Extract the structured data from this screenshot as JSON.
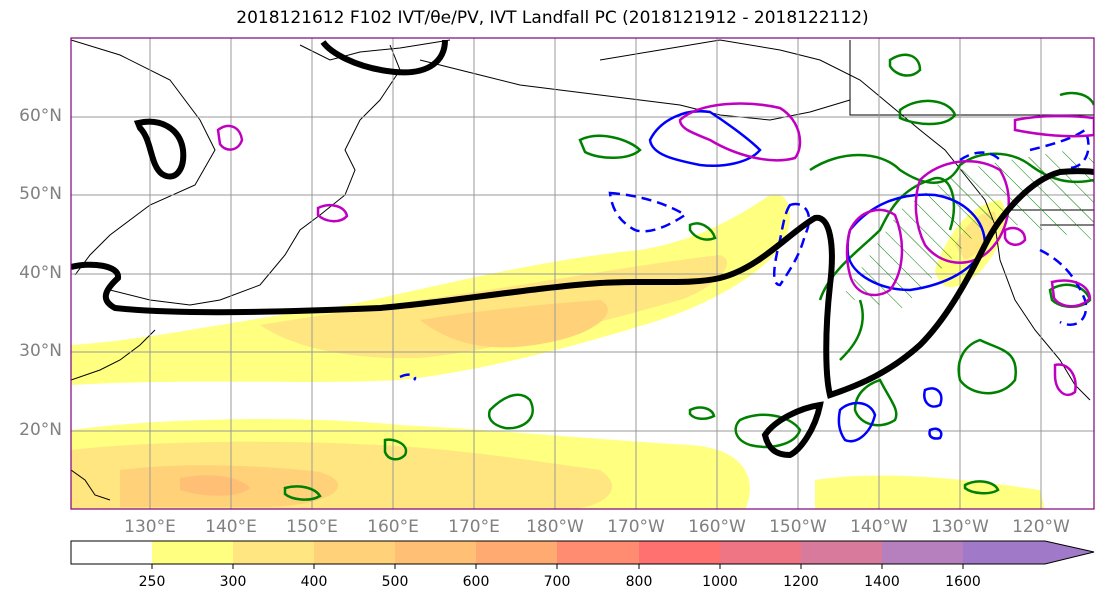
{
  "title": "2018121612 F102 IVT/θe/PV, IVT Landfall PC (2018121912 - 2018122112)",
  "map": {
    "lat_labels": [
      "60°N",
      "50°N",
      "40°N",
      "30°N",
      "20°N"
    ],
    "lon_labels": [
      "130°E",
      "140°E",
      "150°E",
      "160°E",
      "170°E",
      "180°W",
      "170°W",
      "160°W",
      "150°W",
      "140°W",
      "130°W",
      "120°W"
    ],
    "grid": true,
    "contour_colors": {
      "theta_e": "#000000",
      "pv_green": "#008000",
      "pv_blue": "#0000ff",
      "pc_magenta": "#c000c0"
    }
  },
  "colorbar": {
    "levels": [
      "250",
      "300",
      "400",
      "500",
      "600",
      "700",
      "800",
      "1000",
      "1200",
      "1400",
      "1600"
    ],
    "colors": [
      "#ffffff",
      "#ffff80",
      "#ffe680",
      "#ffd27a",
      "#ffbf75",
      "#ffaa70",
      "#ff8c70",
      "#ff7070",
      "#ef7585",
      "#d77a9c",
      "#b67fbe",
      "#a07ac8"
    ]
  }
}
